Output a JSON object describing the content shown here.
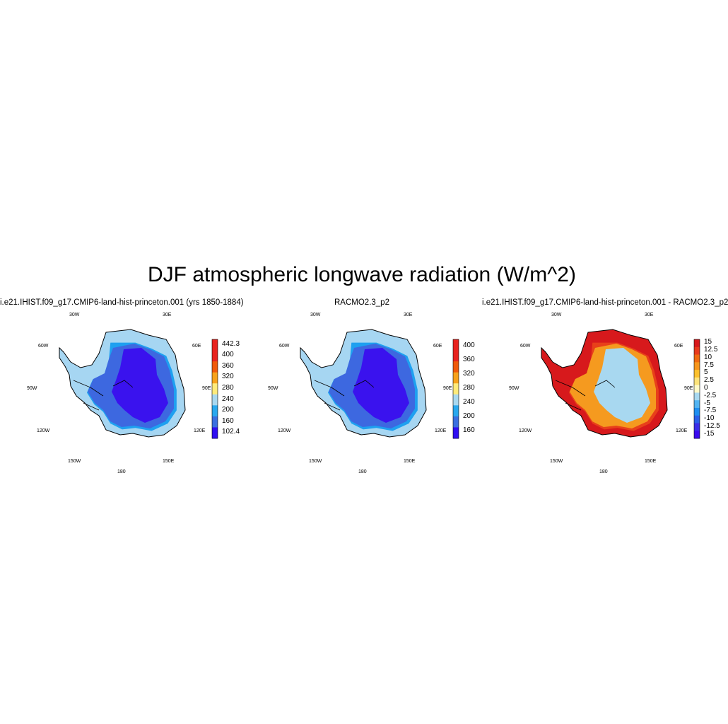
{
  "figure": {
    "title": "DJF atmospheric longwave radiation (W/m^2)"
  },
  "panels": [
    {
      "title": "i.e21.IHIST.f09_g17.CMIP6-land-hist-princeton.001 (yrs 1850-1884)",
      "longitude_labels": [
        "30W",
        "30E",
        "60W",
        "60E",
        "90W",
        "90E",
        "120W",
        "120E",
        "150W",
        "150E",
        "180"
      ],
      "colorbar": {
        "labels": [
          "442.3",
          "400",
          "360",
          "320",
          "280",
          "240",
          "200",
          "160",
          "102.4"
        ],
        "colors": [
          "#e8231e",
          "#e8231e",
          "#f05a0a",
          "#f7a21b",
          "#ffeb7a",
          "#a8d8f0",
          "#29a8ee",
          "#3a6fe0",
          "#2f0ef2"
        ]
      },
      "map_colors": {
        "coast": "#a6d6f2",
        "outer": "#1ea0f0",
        "middle": "#3d68e0",
        "interior": "#3a12ee"
      }
    },
    {
      "title": "RACMO2.3_p2",
      "longitude_labels": [
        "30W",
        "30E",
        "60W",
        "60E",
        "90W",
        "90E",
        "120W",
        "120E",
        "150W",
        "150E",
        "180"
      ],
      "colorbar": {
        "labels": [
          "400",
          "360",
          "320",
          "280",
          "240",
          "200",
          "160"
        ],
        "colors": [
          "#e8231e",
          "#e8231e",
          "#f05a0a",
          "#f7a21b",
          "#ffeb7a",
          "#a8d8f0",
          "#29a8ee",
          "#3a6fe0",
          "#2f0ef2"
        ]
      },
      "map_colors": {
        "coast": "#a6d6f2",
        "outer": "#1ea0f0",
        "middle": "#3d68e0",
        "interior": "#3a12ee"
      }
    },
    {
      "title": "i.e21.IHIST.f09_g17.CMIP6-land-hist-princeton.001 - RACMO2.3_p2",
      "longitude_labels": [
        "30W",
        "30E",
        "60W",
        "60E",
        "90W",
        "90E",
        "120W",
        "120E",
        "150W",
        "150E",
        "180"
      ],
      "colorbar": {
        "labels": [
          "15",
          "12.5",
          "10",
          "7.5",
          "5",
          "2.5",
          "0",
          "-2.5",
          "-5",
          "-7.5",
          "-10",
          "-12.5",
          "-15"
        ],
        "colors": [
          "#d7191c",
          "#e83a1c",
          "#f06a10",
          "#f7961c",
          "#fbc02d",
          "#fde37a",
          "#fff9c8",
          "#a8d8f0",
          "#52b4f2",
          "#1e8ef0",
          "#2a5fe8",
          "#3a2de8",
          "#3b0af0"
        ]
      },
      "map_colors": {
        "coast": "#d7191c",
        "outer": "#e8401a",
        "middle": "#f59a1f",
        "interior": "#a8d8f0"
      }
    }
  ]
}
